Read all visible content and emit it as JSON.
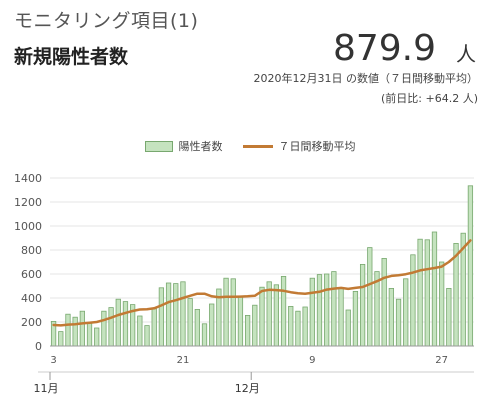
{
  "header": {
    "title": "モニタリング項目(1)",
    "metric_name": "新規陽性者数",
    "value": "879.9",
    "unit": "人",
    "description": "2020年12月31日 の数値（７日間移動平均）",
    "delta": "(前日比: +64.2 人)"
  },
  "colors": {
    "bar": "#c5e3bf",
    "bar_border": "#78a86f",
    "line": "#c27a34",
    "grid": "#e6e6e6"
  },
  "chart_data": {
    "type": "bar",
    "title": "",
    "xlabel": "",
    "ylabel": "",
    "ylim": [
      0,
      1400
    ],
    "y_ticks": [
      0,
      200,
      400,
      600,
      800,
      1000,
      1200,
      1400
    ],
    "x_tick_labels": [
      {
        "index": 0,
        "label": "3"
      },
      {
        "index": 18,
        "label": "21"
      },
      {
        "index": 36,
        "label": "9"
      },
      {
        "index": 54,
        "label": "27"
      }
    ],
    "months": [
      {
        "index": 0,
        "label": "11月"
      },
      {
        "index": 28,
        "label": "12月"
      }
    ],
    "legend": [
      "陽性者数",
      "７日間移動平均"
    ],
    "categories": [
      "11/3",
      "11/4",
      "11/5",
      "11/6",
      "11/7",
      "11/8",
      "11/9",
      "11/10",
      "11/11",
      "11/12",
      "11/13",
      "11/14",
      "11/15",
      "11/16",
      "11/17",
      "11/18",
      "11/19",
      "11/20",
      "11/21",
      "11/22",
      "11/23",
      "11/24",
      "11/25",
      "11/26",
      "11/27",
      "11/28",
      "11/29",
      "11/30",
      "12/1",
      "12/2",
      "12/3",
      "12/4",
      "12/5",
      "12/6",
      "12/7",
      "12/8",
      "12/9",
      "12/10",
      "12/11",
      "12/12",
      "12/13",
      "12/14",
      "12/15",
      "12/16",
      "12/17",
      "12/18",
      "12/19",
      "12/20",
      "12/21",
      "12/22",
      "12/23",
      "12/24",
      "12/25",
      "12/26",
      "12/27",
      "12/28",
      "12/29",
      "12/30",
      "12/31"
    ],
    "series": [
      {
        "name": "陽性者数",
        "type": "bar",
        "values": [
          205,
          120,
          265,
          240,
          290,
          190,
          150,
          290,
          320,
          390,
          370,
          345,
          250,
          170,
          310,
          485,
          525,
          520,
          535,
          395,
          305,
          185,
          350,
          475,
          565,
          560,
          410,
          255,
          340,
          490,
          535,
          510,
          580,
          330,
          290,
          325,
          565,
          595,
          600,
          620,
          480,
          300,
          455,
          680,
          820,
          620,
          730,
          480,
          390,
          560,
          760,
          890,
          885,
          950,
          700,
          480,
          855,
          940,
          1335
        ]
      },
      {
        "name": "７日間移動平均",
        "type": "line",
        "values": [
          175,
          172,
          178,
          182,
          188,
          194,
          200,
          216,
          236,
          258,
          276,
          292,
          304,
          306,
          314,
          338,
          366,
          382,
          400,
          418,
          436,
          436,
          414,
          406,
          410,
          410,
          412,
          414,
          418,
          458,
          468,
          466,
          460,
          448,
          440,
          436,
          444,
          452,
          470,
          478,
          484,
          476,
          484,
          492,
          516,
          540,
          568,
          584,
          590,
          598,
          612,
          630,
          640,
          650,
          662,
          700,
          752,
          816,
          880
        ]
      }
    ]
  }
}
